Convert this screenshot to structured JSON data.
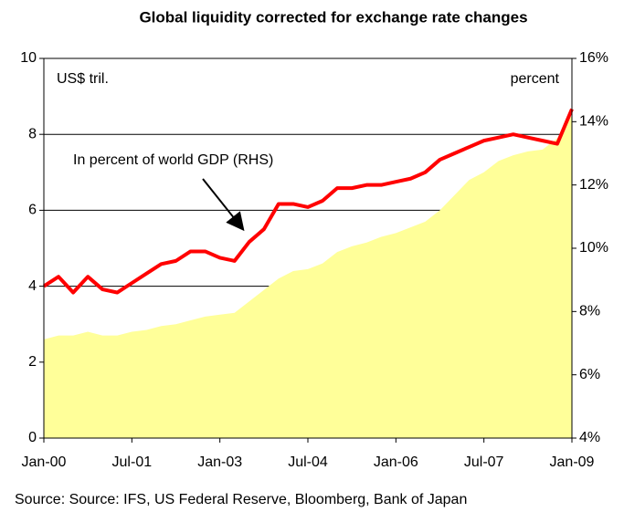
{
  "chart_data": {
    "type": "area-line",
    "title": "Global liquidity corrected for exchange rate changes",
    "y_label": "US$ tril.",
    "y2_label": "percent",
    "annotation": "In percent of world GDP (RHS)",
    "source": "Source: Source: IFS, US Federal Reserve, Bloomberg, Bank of Japan",
    "categories": [
      "Jan-00",
      null,
      null,
      null,
      null,
      null,
      "Jul-01",
      null,
      null,
      null,
      null,
      null,
      "Jan-03",
      null,
      null,
      null,
      null,
      null,
      "Jul-04",
      null,
      null,
      null,
      null,
      null,
      "Jan-06",
      null,
      null,
      null,
      null,
      null,
      "Jul-07",
      null,
      null,
      null,
      null,
      null,
      "Jan-09"
    ],
    "series": [
      {
        "color": "#ffff99",
        "values": [
          2.6,
          2.7,
          2.7,
          2.8,
          2.7,
          2.7,
          2.8,
          2.85,
          2.95,
          3.0,
          3.1,
          3.2,
          3.25,
          3.3,
          3.6,
          3.9,
          4.2,
          4.4,
          4.45,
          4.6,
          4.9,
          5.05,
          5.15,
          5.3,
          5.4,
          5.55,
          5.7,
          6.0,
          6.4,
          6.8,
          7.0,
          7.3,
          7.45,
          7.55,
          7.6,
          7.9,
          8.5
        ]
      },
      {
        "color": "#ff0000",
        "axis": "y2",
        "values": [
          8.8,
          9.1,
          8.6,
          9.1,
          8.7,
          8.6,
          8.9,
          9.2,
          9.5,
          9.6,
          9.9,
          9.9,
          9.7,
          9.6,
          10.2,
          10.6,
          11.4,
          11.4,
          11.3,
          11.5,
          11.9,
          11.9,
          12.0,
          12.0,
          12.1,
          12.2,
          12.4,
          12.8,
          13.0,
          13.2,
          13.4,
          13.5,
          13.6,
          13.5,
          13.4,
          13.3,
          14.4
        ]
      }
    ],
    "ylim": [
      0,
      10
    ],
    "yticks": [
      0,
      2,
      4,
      6,
      8,
      10
    ],
    "y2lim": [
      4,
      16
    ],
    "y2ticks": [
      {
        "value": 4,
        "label": "4%"
      },
      {
        "value": 6,
        "label": "6%"
      },
      {
        "value": 8,
        "label": "8%"
      },
      {
        "value": 10,
        "label": "10%"
      },
      {
        "value": 12,
        "label": "12%"
      },
      {
        "value": 14,
        "label": "14%"
      },
      {
        "value": 16,
        "label": "16%"
      }
    ],
    "grid": true
  }
}
